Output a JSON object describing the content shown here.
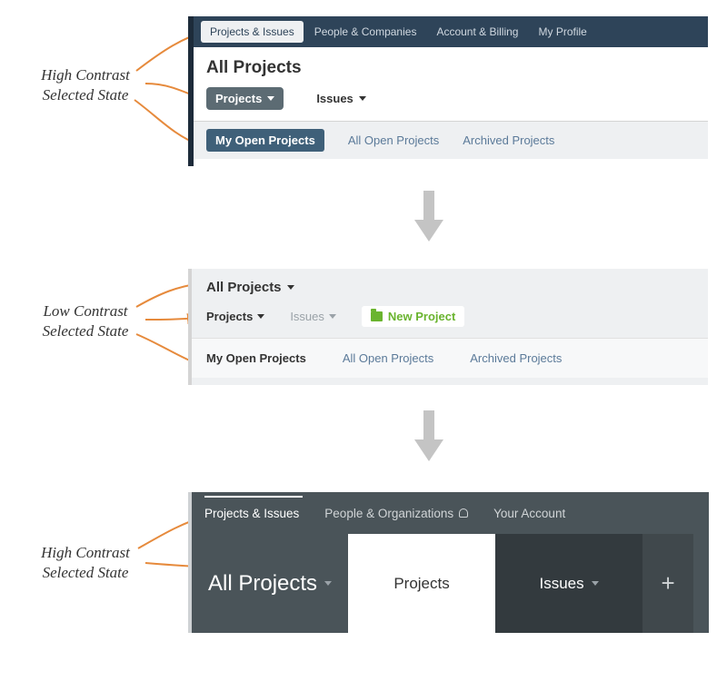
{
  "annotations": {
    "a1": "High Contrast\nSelected State",
    "a2": "Low Contrast\nSelected State",
    "a3": "High Contrast\nSelected State"
  },
  "colors": {
    "arrow": "#e68a3c",
    "transition_arrow": "#c4c4c4",
    "p1_nav_bg": "#2e4459",
    "p1_accent": "#1d2b3a",
    "p1_tab_active_bg": "#3f6079",
    "p1_drop_bg": "#5c6b73",
    "link": "#5b7a99",
    "green": "#6ab42f",
    "p3_bg": "#4a5459",
    "p3_tab_dark": "#333a3e"
  },
  "panel1": {
    "nav": [
      "Projects & Issues",
      "People & Companies",
      "Account & Billing",
      "My Profile"
    ],
    "title": "All Projects",
    "dropdowns": {
      "projects": "Projects",
      "issues": "Issues"
    },
    "tabs": [
      "My Open Projects",
      "All Open Projects",
      "Archived Projects"
    ]
  },
  "panel2": {
    "title": "All Projects",
    "dropdowns": {
      "projects": "Projects",
      "issues": "Issues"
    },
    "new_label": "New Project",
    "tabs": [
      "My Open Projects",
      "All Open Projects",
      "Archived Projects"
    ]
  },
  "panel3": {
    "nav": [
      "Projects & Issues",
      "People & Organizations",
      "Your Account"
    ],
    "title": "All Projects",
    "tabs": {
      "projects": "Projects",
      "issues": "Issues"
    }
  }
}
